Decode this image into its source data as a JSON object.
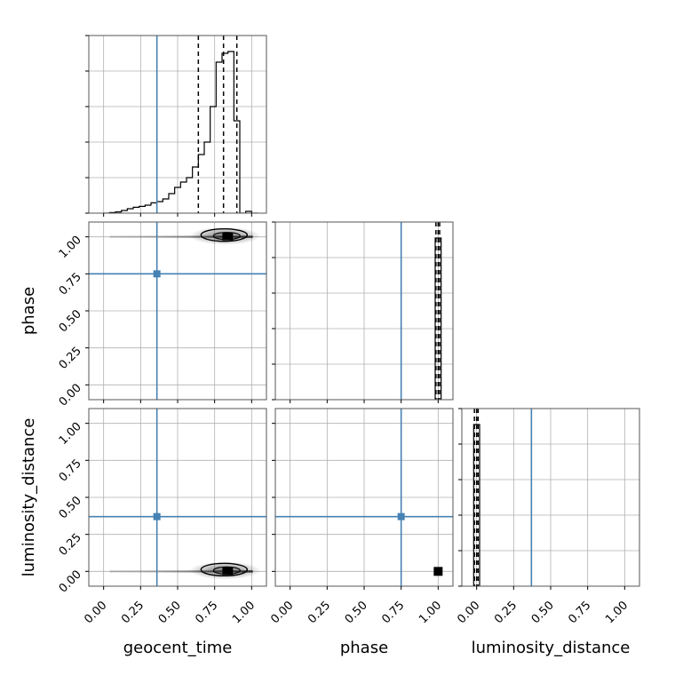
{
  "chart_data": {
    "type": "corner",
    "parameters": [
      "geocent_time",
      "phase",
      "luminosity_distance"
    ],
    "tick_labels": [
      "0.00",
      "0.25",
      "0.50",
      "0.75",
      "1.00"
    ],
    "tick_values": [
      0,
      0.25,
      0.5,
      0.75,
      1.0
    ],
    "axis_ranges": {
      "geocent_time": [
        -0.1,
        1.1
      ],
      "phase": [
        -0.1,
        1.1
      ],
      "luminosity_distance": [
        -0.1,
        1.1
      ]
    },
    "truths": {
      "geocent_time": 0.36,
      "phase": 0.75,
      "luminosity_distance": 0.37
    },
    "truth_color": "#4682b4",
    "grid": true,
    "marginals": {
      "geocent_time": {
        "bin_edges": [
          0.0,
          0.04,
          0.08,
          0.12,
          0.16,
          0.2,
          0.24,
          0.28,
          0.32,
          0.36,
          0.4,
          0.44,
          0.48,
          0.52,
          0.56,
          0.6,
          0.64,
          0.68,
          0.72,
          0.76,
          0.8,
          0.84,
          0.88,
          0.92,
          0.96,
          1.0,
          1.04
        ],
        "counts": [
          0.0,
          0.003,
          0.007,
          0.015,
          0.025,
          0.033,
          0.038,
          0.045,
          0.058,
          0.065,
          0.08,
          0.11,
          0.145,
          0.175,
          0.2,
          0.26,
          0.33,
          0.4,
          0.6,
          0.85,
          0.9,
          0.91,
          0.52,
          0.0,
          0.01,
          0.0
        ],
        "quantiles": [
          0.64,
          0.81,
          0.9
        ]
      },
      "phase": {
        "bin_edges": [
          0.98,
          1.0,
          1.02
        ],
        "counts": [
          1.0,
          1.0
        ],
        "quantiles": [
          0.985,
          1.0,
          1.01
        ]
      },
      "luminosity_distance": {
        "bin_edges": [
          -0.02,
          0.0,
          0.02
        ],
        "counts": [
          1.0,
          1.0
        ],
        "quantiles": [
          -0.015,
          0.0,
          0.01
        ]
      }
    },
    "joint": [
      {
        "x": "geocent_time",
        "y": "phase",
        "samples_x_range": [
          0.05,
          1.0
        ],
        "samples_y": 1.0,
        "peak_x": 0.85
      },
      {
        "x": "geocent_time",
        "y": "luminosity_distance",
        "samples_x_range": [
          0.05,
          1.0
        ],
        "samples_y": 0.0,
        "peak_x": 0.85
      },
      {
        "x": "phase",
        "y": "luminosity_distance",
        "point": [
          1.0,
          0.0
        ]
      }
    ]
  }
}
